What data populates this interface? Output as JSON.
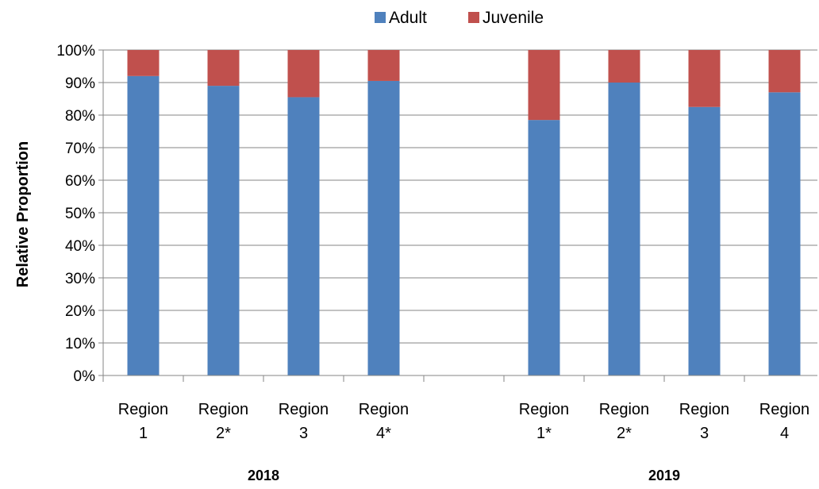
{
  "chart_data": {
    "type": "bar",
    "stacked": true,
    "percent_stacked": true,
    "title": "",
    "ylabel": "Relative Proportion",
    "xlabel": "",
    "ylim": [
      0,
      100
    ],
    "y_ticks": [
      "0%",
      "10%",
      "20%",
      "30%",
      "40%",
      "50%",
      "60%",
      "70%",
      "80%",
      "90%",
      "100%"
    ],
    "grid": true,
    "legend_position": "top",
    "groups": [
      {
        "label": "2018",
        "categories": [
          {
            "line1": "Region",
            "line2": "1"
          },
          {
            "line1": "Region",
            "line2": "2*"
          },
          {
            "line1": "Region",
            "line2": "3"
          },
          {
            "line1": "Region",
            "line2": "4*"
          }
        ]
      },
      {
        "label": "2019",
        "categories": [
          {
            "line1": "Region",
            "line2": "1*"
          },
          {
            "line1": "Region",
            "line2": "2*"
          },
          {
            "line1": "Region",
            "line2": "3"
          },
          {
            "line1": "Region",
            "line2": "4"
          }
        ]
      }
    ],
    "series": [
      {
        "name": "Adult",
        "color": "#4F81BD",
        "values": [
          92,
          89,
          85.5,
          90.5,
          78.5,
          90,
          82.5,
          87
        ]
      },
      {
        "name": "Juvenile",
        "color": "#C0504D",
        "values": [
          8,
          11,
          14.5,
          9.5,
          21.5,
          10,
          17.5,
          13
        ]
      }
    ]
  }
}
